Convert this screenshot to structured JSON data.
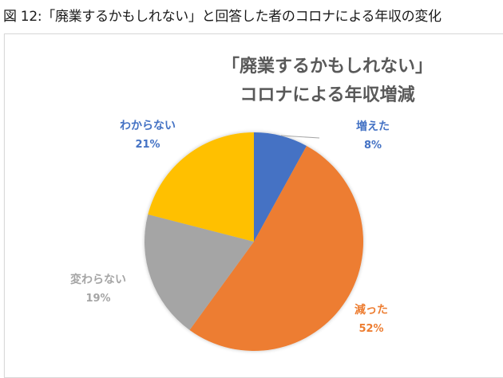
{
  "figure": {
    "caption": "図 12:「廃業するかもしれない」と回答した者のコロナによる年収の変化"
  },
  "chart_data": {
    "type": "pie",
    "title": "「廃業するかもしれない」コロナによる年収増減",
    "title_lines": [
      "「廃業するかもしれない」",
      "コロナによる年収増減"
    ],
    "categories": [
      "増えた",
      "減った",
      "変わらない",
      "わからない"
    ],
    "values": [
      8,
      52,
      19,
      21
    ],
    "unit": "%",
    "start_angle": "12 o'clock, clockwise",
    "legend": "none (data labels outside slices)",
    "slices": [
      {
        "label": "増えた",
        "value": 8,
        "value_label": "8%",
        "color": "#4472C4",
        "label_color": "#4472C4"
      },
      {
        "label": "減った",
        "value": 52,
        "value_label": "52%",
        "color": "#ED7D31",
        "label_color": "#ED7D31"
      },
      {
        "label": "変わらない",
        "value": 19,
        "value_label": "19%",
        "color": "#A5A5A5",
        "label_color": "#A5A5A5"
      },
      {
        "label": "わからない",
        "value": 21,
        "value_label": "21%",
        "color": "#FFC000",
        "label_color": "#4472C4"
      }
    ]
  }
}
